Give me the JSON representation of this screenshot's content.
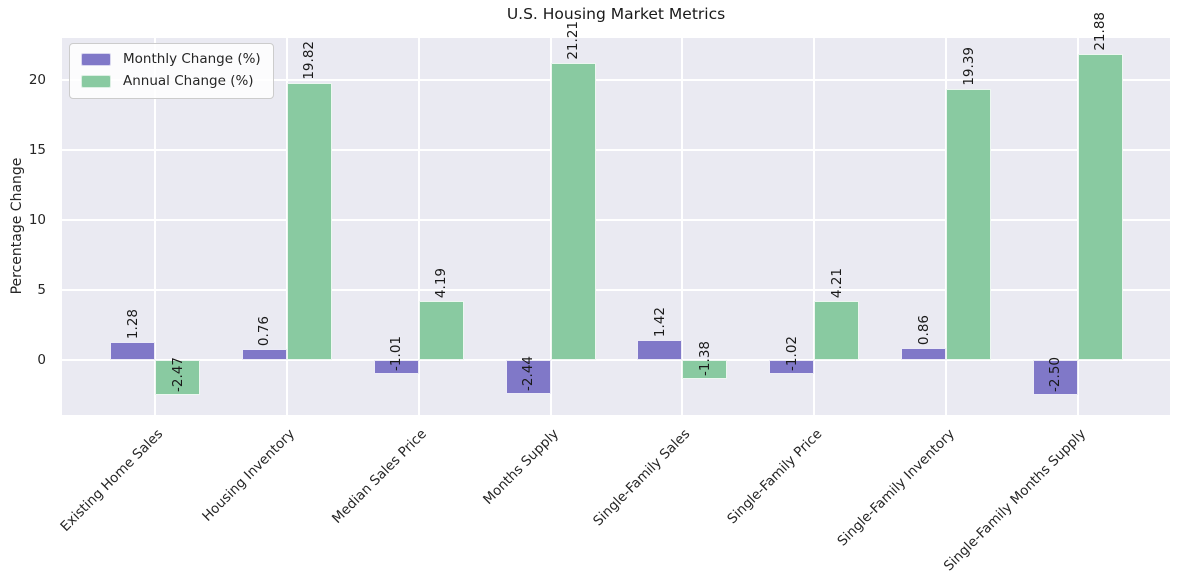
{
  "chart_data": {
    "type": "bar",
    "title": "U.S. Housing Market Metrics",
    "ylabel": "Percentage Change",
    "xlabel": "",
    "categories": [
      "Existing Home Sales",
      "Housing Inventory",
      "Median Sales Price",
      "Months Supply",
      "Single-Family Sales",
      "Single-Family Price",
      "Single-Family Inventory",
      "Single-Family Months Supply"
    ],
    "series": [
      {
        "name": "Monthly Change (%)",
        "color": "#8078c8",
        "values": [
          1.28,
          0.76,
          -1.01,
          -2.44,
          1.42,
          -1.02,
          0.86,
          -2.5
        ]
      },
      {
        "name": "Annual Change (%)",
        "color": "#89caa1",
        "values": [
          -2.47,
          19.82,
          4.19,
          21.21,
          -1.38,
          4.21,
          19.39,
          21.88
        ]
      }
    ],
    "yticks": [
      0,
      5,
      10,
      15,
      20
    ],
    "ylim": [
      -3.93,
      23.0
    ],
    "grid": true,
    "legend_position": "upper left",
    "plot_background": "#eaeaf2",
    "grid_color": "#ffffff",
    "bar_label_rotation": 90,
    "xtick_rotation": 45
  }
}
